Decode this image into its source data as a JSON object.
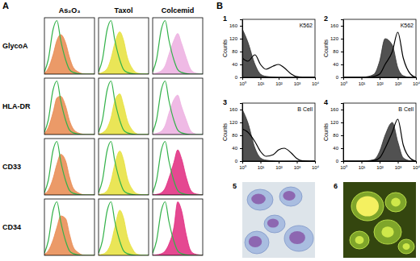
{
  "figure": {
    "panels": [
      "A",
      "B"
    ],
    "columns": [
      "As₂O₃",
      "Taxol",
      "Colcemid"
    ],
    "rows": [
      "GlycoA",
      "HLA-DR",
      "CD33",
      "CD34"
    ],
    "micrographs": [
      "5",
      "6"
    ]
  },
  "chart_data": [
    {
      "type": "line",
      "log": "x",
      "tick_labels": false,
      "xlim": [
        1,
        10000
      ],
      "ylim": [
        0,
        100
      ],
      "x": [
        1,
        2,
        5,
        10,
        20,
        50,
        100,
        200,
        500,
        1000,
        2000,
        5000,
        10000
      ],
      "series": [
        {
          "type": "area",
          "color": "#e8884e",
          "values": [
            2,
            10,
            35,
            60,
            70,
            55,
            30,
            12,
            4,
            1,
            0,
            0,
            0
          ]
        },
        {
          "type": "line",
          "color": "#33b24a",
          "values": [
            4,
            25,
            80,
            95,
            60,
            25,
            8,
            3,
            1,
            0,
            0,
            0,
            0
          ]
        }
      ]
    },
    {
      "type": "line",
      "log": "x",
      "tick_labels": false,
      "xlim": [
        1,
        10000
      ],
      "ylim": [
        0,
        100
      ],
      "x": [
        1,
        2,
        5,
        10,
        20,
        50,
        100,
        200,
        500,
        1000,
        2000,
        5000,
        10000
      ],
      "series": [
        {
          "type": "area",
          "color": "#e6e03a",
          "values": [
            1,
            3,
            10,
            28,
            55,
            75,
            60,
            30,
            10,
            3,
            1,
            0,
            0
          ]
        },
        {
          "type": "line",
          "color": "#33b24a",
          "values": [
            4,
            25,
            80,
            95,
            60,
            25,
            8,
            3,
            1,
            0,
            0,
            0,
            0
          ]
        }
      ]
    },
    {
      "type": "line",
      "log": "x",
      "tick_labels": false,
      "xlim": [
        1,
        10000
      ],
      "ylim": [
        0,
        100
      ],
      "x": [
        1,
        2,
        5,
        10,
        20,
        50,
        100,
        200,
        500,
        1000,
        2000,
        5000,
        10000
      ],
      "series": [
        {
          "type": "area",
          "color": "#ecaee0",
          "values": [
            0,
            2,
            6,
            15,
            35,
            60,
            72,
            55,
            28,
            10,
            3,
            1,
            0
          ]
        },
        {
          "type": "line",
          "color": "#33b24a",
          "values": [
            4,
            25,
            80,
            95,
            60,
            25,
            8,
            3,
            1,
            0,
            0,
            0,
            0
          ]
        }
      ]
    },
    {
      "type": "line",
      "log": "x",
      "tick_labels": false,
      "xlim": [
        1,
        10000
      ],
      "ylim": [
        0,
        100
      ],
      "x": [
        1,
        2,
        5,
        10,
        20,
        50,
        100,
        200,
        500,
        1000,
        2000,
        5000,
        10000
      ],
      "series": [
        {
          "type": "area",
          "color": "#e8884e",
          "values": [
            2,
            12,
            40,
            65,
            68,
            50,
            25,
            10,
            3,
            1,
            0,
            0,
            0
          ]
        },
        {
          "type": "line",
          "color": "#33b24a",
          "values": [
            4,
            25,
            80,
            95,
            60,
            25,
            8,
            3,
            1,
            0,
            0,
            0,
            0
          ]
        }
      ]
    },
    {
      "type": "line",
      "log": "x",
      "tick_labels": false,
      "xlim": [
        1,
        10000
      ],
      "ylim": [
        0,
        100
      ],
      "x": [
        1,
        2,
        5,
        10,
        20,
        50,
        100,
        200,
        500,
        1000,
        2000,
        5000,
        10000
      ],
      "series": [
        {
          "type": "area",
          "color": "#e6e03a",
          "values": [
            1,
            3,
            12,
            30,
            60,
            72,
            52,
            25,
            8,
            2,
            0,
            0,
            0
          ]
        },
        {
          "type": "line",
          "color": "#33b24a",
          "values": [
            4,
            25,
            80,
            95,
            60,
            25,
            8,
            3,
            1,
            0,
            0,
            0,
            0
          ]
        }
      ]
    },
    {
      "type": "line",
      "log": "x",
      "tick_labels": false,
      "xlim": [
        1,
        10000
      ],
      "ylim": [
        0,
        100
      ],
      "x": [
        1,
        2,
        5,
        10,
        20,
        50,
        100,
        200,
        500,
        1000,
        2000,
        5000,
        10000
      ],
      "series": [
        {
          "type": "area",
          "color": "#ecaee0",
          "values": [
            0,
            2,
            6,
            16,
            38,
            62,
            70,
            50,
            25,
            8,
            2,
            0,
            0
          ]
        },
        {
          "type": "line",
          "color": "#33b24a",
          "values": [
            4,
            25,
            80,
            95,
            60,
            25,
            8,
            3,
            1,
            0,
            0,
            0,
            0
          ]
        }
      ]
    },
    {
      "type": "line",
      "log": "x",
      "tick_labels": false,
      "xlim": [
        1,
        10000
      ],
      "ylim": [
        0,
        100
      ],
      "x": [
        1,
        2,
        5,
        10,
        20,
        50,
        100,
        200,
        500,
        1000,
        2000,
        5000,
        10000
      ],
      "series": [
        {
          "type": "area",
          "color": "#e8884e",
          "values": [
            2,
            8,
            30,
            55,
            72,
            60,
            32,
            12,
            4,
            1,
            0,
            0,
            0
          ]
        },
        {
          "type": "line",
          "color": "#33b24a",
          "values": [
            4,
            25,
            80,
            95,
            60,
            25,
            8,
            3,
            1,
            0,
            0,
            0,
            0
          ]
        }
      ]
    },
    {
      "type": "line",
      "log": "x",
      "tick_labels": false,
      "xlim": [
        1,
        10000
      ],
      "ylim": [
        0,
        100
      ],
      "x": [
        1,
        2,
        5,
        10,
        20,
        50,
        100,
        200,
        500,
        1000,
        2000,
        5000,
        10000
      ],
      "series": [
        {
          "type": "area",
          "color": "#e6e03a",
          "values": [
            1,
            2,
            8,
            25,
            55,
            78,
            62,
            30,
            10,
            3,
            1,
            0,
            0
          ]
        },
        {
          "type": "line",
          "color": "#33b24a",
          "values": [
            4,
            25,
            80,
            95,
            60,
            25,
            8,
            3,
            1,
            0,
            0,
            0,
            0
          ]
        }
      ]
    },
    {
      "type": "line",
      "log": "x",
      "tick_labels": false,
      "xlim": [
        1,
        10000
      ],
      "ylim": [
        0,
        100
      ],
      "x": [
        1,
        2,
        5,
        10,
        20,
        50,
        100,
        200,
        500,
        1000,
        2000,
        5000,
        10000
      ],
      "series": [
        {
          "type": "area",
          "color": "#e0287e",
          "values": [
            0,
            1,
            4,
            12,
            30,
            58,
            80,
            65,
            30,
            10,
            3,
            1,
            0
          ]
        },
        {
          "type": "line",
          "color": "#33b24a",
          "values": [
            4,
            25,
            80,
            95,
            60,
            25,
            8,
            3,
            1,
            0,
            0,
            0,
            0
          ]
        }
      ]
    },
    {
      "type": "line",
      "log": "x",
      "tick_labels": false,
      "xlim": [
        1,
        10000
      ],
      "ylim": [
        0,
        100
      ],
      "x": [
        1,
        2,
        5,
        10,
        20,
        50,
        100,
        200,
        500,
        1000,
        2000,
        5000,
        10000
      ],
      "series": [
        {
          "type": "area",
          "color": "#e8884e",
          "values": [
            2,
            8,
            28,
            50,
            70,
            65,
            38,
            15,
            5,
            1,
            0,
            0,
            0
          ]
        },
        {
          "type": "line",
          "color": "#33b24a",
          "values": [
            4,
            25,
            80,
            95,
            60,
            25,
            8,
            3,
            1,
            0,
            0,
            0,
            0
          ]
        }
      ]
    },
    {
      "type": "line",
      "log": "x",
      "tick_labels": false,
      "xlim": [
        1,
        10000
      ],
      "ylim": [
        0,
        100
      ],
      "x": [
        1,
        2,
        5,
        10,
        20,
        50,
        100,
        200,
        500,
        1000,
        2000,
        5000,
        10000
      ],
      "series": [
        {
          "type": "area",
          "color": "#e6e03a",
          "values": [
            1,
            2,
            8,
            22,
            50,
            80,
            66,
            34,
            12,
            3,
            1,
            0,
            0
          ]
        },
        {
          "type": "line",
          "color": "#33b24a",
          "values": [
            4,
            25,
            80,
            95,
            60,
            25,
            8,
            3,
            1,
            0,
            0,
            0,
            0
          ]
        }
      ]
    },
    {
      "type": "line",
      "log": "x",
      "tick_labels": false,
      "xlim": [
        1,
        10000
      ],
      "ylim": [
        0,
        100
      ],
      "x": [
        1,
        2,
        5,
        10,
        20,
        50,
        100,
        200,
        500,
        1000,
        2000,
        5000,
        10000
      ],
      "series": [
        {
          "type": "area",
          "color": "#e0287e",
          "values": [
            0,
            1,
            3,
            8,
            20,
            50,
            95,
            80,
            35,
            10,
            3,
            1,
            0
          ]
        },
        {
          "type": "line",
          "color": "#33b24a",
          "values": [
            4,
            25,
            80,
            95,
            60,
            25,
            8,
            3,
            1,
            0,
            0,
            0,
            0
          ]
        }
      ]
    },
    {
      "type": "line",
      "title": "1",
      "annotations": [
        "K562"
      ],
      "ylabel": "Counts",
      "log": "x",
      "xlim": [
        1,
        10000
      ],
      "ylim": [
        0,
        180
      ],
      "xticks": [
        {
          "value": 1,
          "label": "10⁰"
        },
        {
          "value": 10,
          "label": "10¹"
        },
        {
          "value": 100,
          "label": "10²"
        },
        {
          "value": 1000,
          "label": "10³"
        },
        {
          "value": 10000,
          "label": "10⁴"
        }
      ],
      "yticks": [
        0,
        40,
        80,
        120,
        160
      ],
      "x": [
        1,
        2,
        5,
        10,
        20,
        50,
        100,
        200,
        500,
        1000,
        2000,
        5000,
        10000
      ],
      "series": [
        {
          "type": "area",
          "color": "#333333",
          "values": [
            150,
            110,
            40,
            10,
            3,
            1,
            0,
            0,
            0,
            0,
            0,
            0,
            0
          ]
        },
        {
          "type": "line",
          "color": "#000000",
          "values": [
            60,
            50,
            70,
            40,
            25,
            35,
            40,
            30,
            10,
            2,
            0,
            0,
            0
          ]
        }
      ]
    },
    {
      "type": "line",
      "title": "2",
      "annotations": [
        "K562"
      ],
      "ylabel": "Counts",
      "log": "x",
      "xlim": [
        1,
        10000
      ],
      "ylim": [
        0,
        180
      ],
      "xticks": [
        {
          "value": 1,
          "label": "10⁰"
        },
        {
          "value": 10,
          "label": "10¹"
        },
        {
          "value": 100,
          "label": "10²"
        },
        {
          "value": 1000,
          "label": "10³"
        },
        {
          "value": 10000,
          "label": "10⁴"
        }
      ],
      "yticks": [
        0,
        40,
        80,
        120,
        160
      ],
      "x": [
        1,
        2,
        5,
        10,
        20,
        50,
        100,
        200,
        500,
        1000,
        2000,
        5000,
        10000
      ],
      "series": [
        {
          "type": "area",
          "color": "#333333",
          "values": [
            0,
            0,
            0,
            0,
            2,
            10,
            50,
            120,
            100,
            30,
            5,
            0,
            0
          ]
        },
        {
          "type": "line",
          "color": "#000000",
          "values": [
            0,
            0,
            0,
            0,
            0,
            3,
            10,
            40,
            80,
            140,
            60,
            10,
            0
          ]
        }
      ]
    },
    {
      "type": "line",
      "title": "3",
      "annotations": [
        "B Cell"
      ],
      "ylabel": "Counts",
      "log": "x",
      "xlim": [
        1,
        10000
      ],
      "ylim": [
        0,
        180
      ],
      "xticks": [
        {
          "value": 1,
          "label": "10⁰"
        },
        {
          "value": 10,
          "label": "10¹"
        },
        {
          "value": 100,
          "label": "10²"
        },
        {
          "value": 1000,
          "label": "10³"
        },
        {
          "value": 10000,
          "label": "10⁴"
        }
      ],
      "yticks": [
        0,
        40,
        80,
        120,
        160
      ],
      "x": [
        1,
        2,
        5,
        10,
        20,
        50,
        100,
        200,
        500,
        1000,
        2000,
        5000,
        10000
      ],
      "series": [
        {
          "type": "area",
          "color": "#333333",
          "values": [
            160,
            120,
            40,
            10,
            3,
            1,
            0,
            0,
            0,
            0,
            0,
            0,
            0
          ]
        },
        {
          "type": "line",
          "color": "#000000",
          "values": [
            100,
            90,
            60,
            30,
            15,
            20,
            35,
            40,
            25,
            8,
            1,
            0,
            0
          ]
        }
      ]
    },
    {
      "type": "line",
      "title": "4",
      "annotations": [
        "B Cell"
      ],
      "ylabel": "Counts",
      "log": "x",
      "xlim": [
        1,
        10000
      ],
      "ylim": [
        0,
        180
      ],
      "xticks": [
        {
          "value": 1,
          "label": "10⁰"
        },
        {
          "value": 10,
          "label": "10¹"
        },
        {
          "value": 100,
          "label": "10²"
        },
        {
          "value": 1000,
          "label": "10³"
        },
        {
          "value": 10000,
          "label": "10⁴"
        }
      ],
      "yticks": [
        0,
        40,
        80,
        120,
        160
      ],
      "x": [
        1,
        2,
        5,
        10,
        20,
        50,
        100,
        200,
        500,
        1000,
        2000,
        5000,
        10000
      ],
      "series": [
        {
          "type": "area",
          "color": "#333333",
          "values": [
            0,
            0,
            0,
            0,
            1,
            5,
            30,
            80,
            120,
            60,
            10,
            1,
            0
          ]
        },
        {
          "type": "line",
          "color": "#000000",
          "values": [
            0,
            0,
            0,
            0,
            0,
            2,
            10,
            40,
            90,
            130,
            50,
            8,
            0
          ]
        }
      ]
    }
  ]
}
